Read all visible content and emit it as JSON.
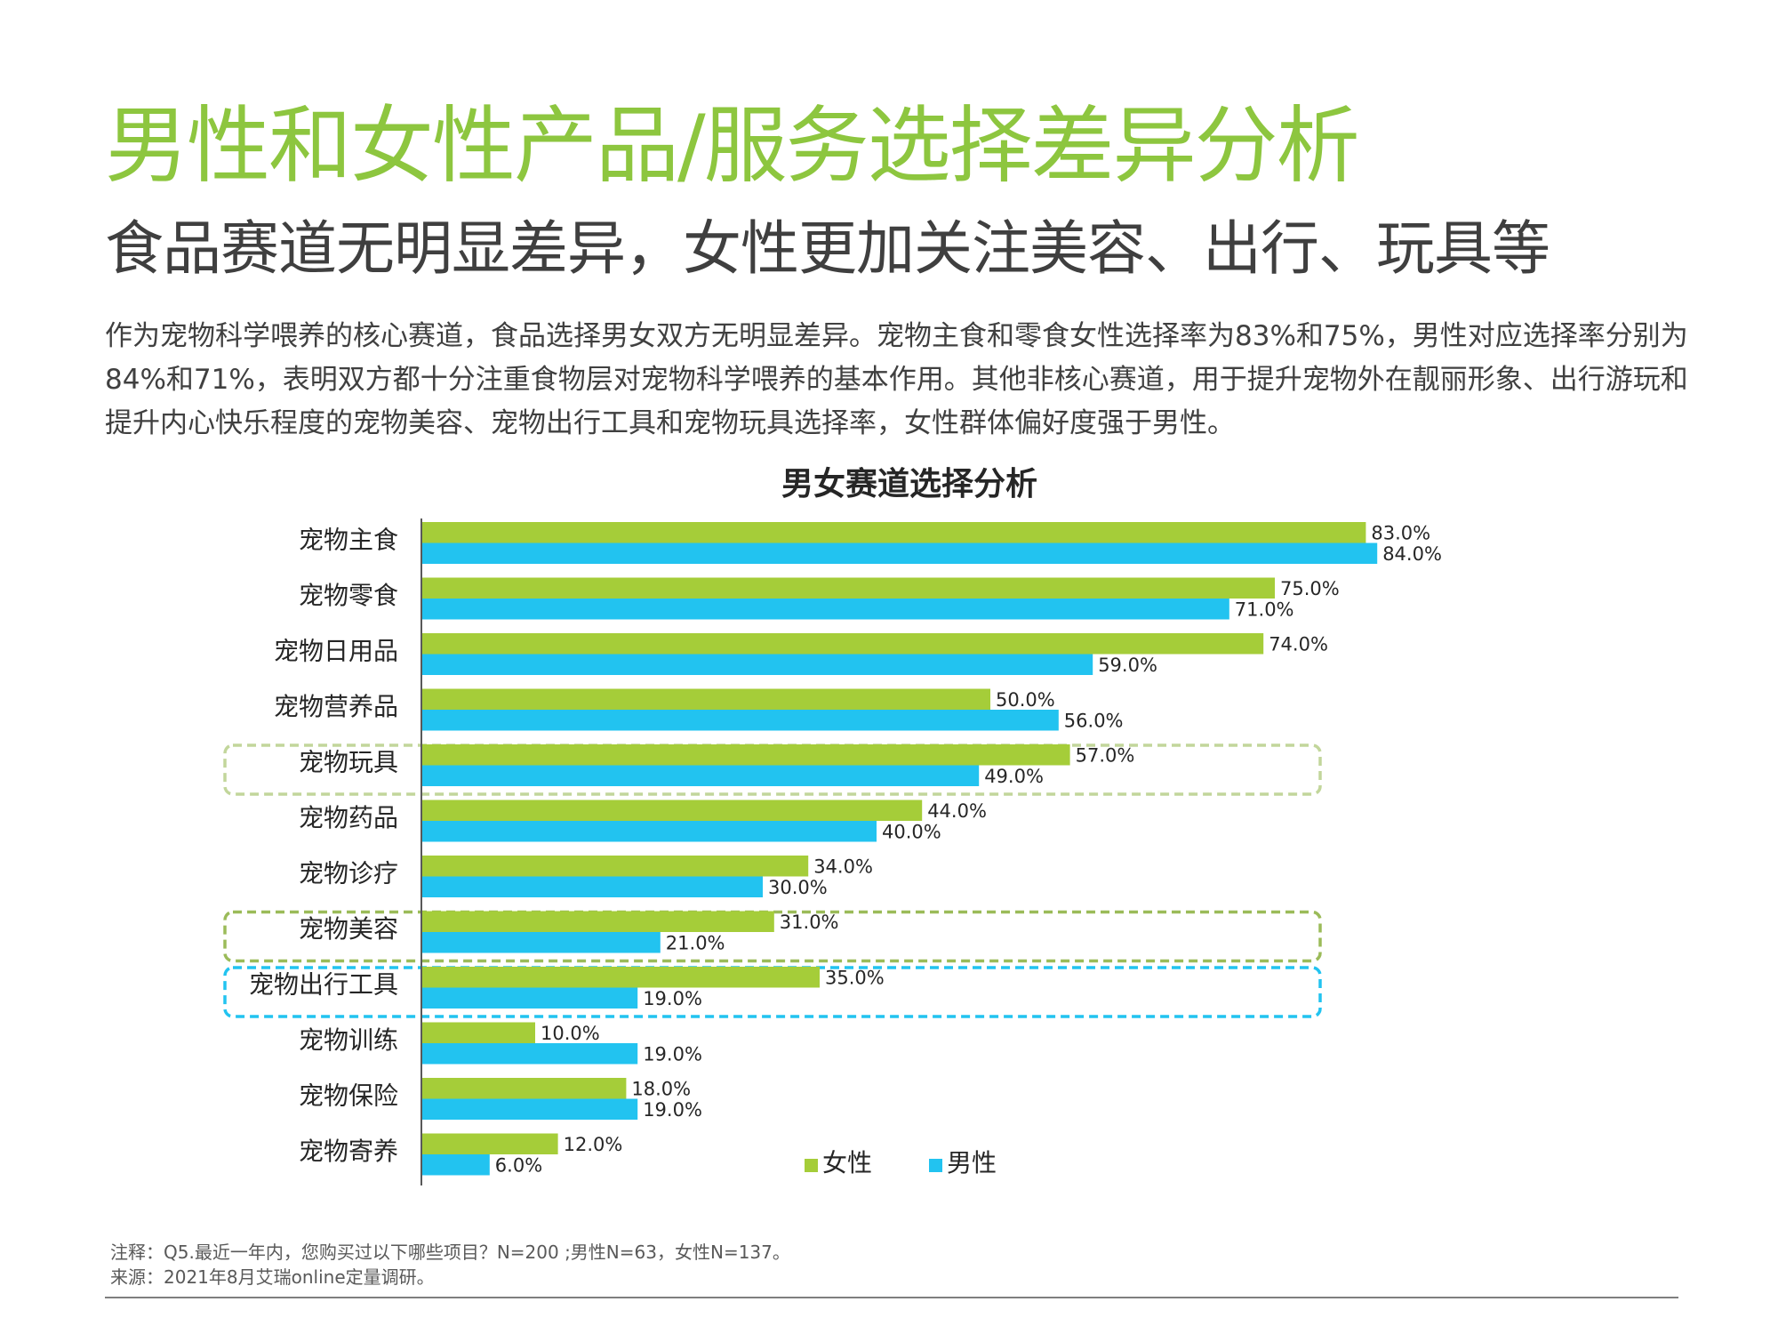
{
  "page": {
    "title": "男性和女性产品/服务选择差异分析",
    "subtitle": "食品赛道无明显差异，女性更加关注美容、出行、玩具等",
    "body": "作为宠物科学喂养的核心赛道，食品选择男女双方无明显差异。宠物主食和零食女性选择率为83%和75%，男性对应选择率分别为84%和71%，表明双方都十分注重食物层对宠物科学喂养的基本作用。其他非核心赛道，用于提升宠物外在靓丽形象、出行游玩和提升内心快乐程度的宠物美容、宠物出行工具和宠物玩具选择率，女性群体偏好度强于男性。",
    "note": "注释：Q5.最近一年内，您购买过以下哪些项目？N=200 ;男性N=63，女性N=137。",
    "source": "来源：2021年8月艾瑞online定量调研。"
  },
  "chart_data": {
    "type": "bar",
    "orientation": "horizontal",
    "title": "男女赛道选择分析",
    "categories": [
      "宠物主食",
      "宠物零食",
      "宠物日用品",
      "宠物营养品",
      "宠物玩具",
      "宠物药品",
      "宠物诊疗",
      "宠物美容",
      "宠物出行工具",
      "宠物训练",
      "宠物保险",
      "宠物寄养"
    ],
    "series": [
      {
        "name": "女性",
        "color": "#a5cd39",
        "values": [
          83.0,
          75.0,
          74.0,
          50.0,
          57.0,
          44.0,
          34.0,
          31.0,
          35.0,
          10.0,
          18.0,
          12.0
        ],
        "labels": [
          "83.0%",
          "75.0%",
          "74.0%",
          "50.0%",
          "57.0%",
          "44.0%",
          "34.0%",
          "31.0%",
          "35.0%",
          "10.0%",
          "18.0%",
          "12.0%"
        ]
      },
      {
        "name": "男性",
        "color": "#22c3f0",
        "values": [
          84.0,
          71.0,
          59.0,
          56.0,
          49.0,
          40.0,
          30.0,
          21.0,
          19.0,
          19.0,
          19.0,
          6.0
        ],
        "labels": [
          "84.0%",
          "71.0%",
          "59.0%",
          "56.0%",
          "49.0%",
          "40.0%",
          "30.0%",
          "21.0%",
          "19.0%",
          "19.0%",
          "19.0%",
          "6.0%"
        ]
      }
    ],
    "xlim": [
      0,
      100
    ],
    "value_suffix": "%",
    "legend": "bottom",
    "highlighted_categories": [
      {
        "category": "宠物玩具",
        "color": "#c2d69b"
      },
      {
        "category": "宠物美容",
        "color": "#9bbb59"
      },
      {
        "category": "宠物出行工具",
        "color": "#22c3f0"
      }
    ]
  }
}
